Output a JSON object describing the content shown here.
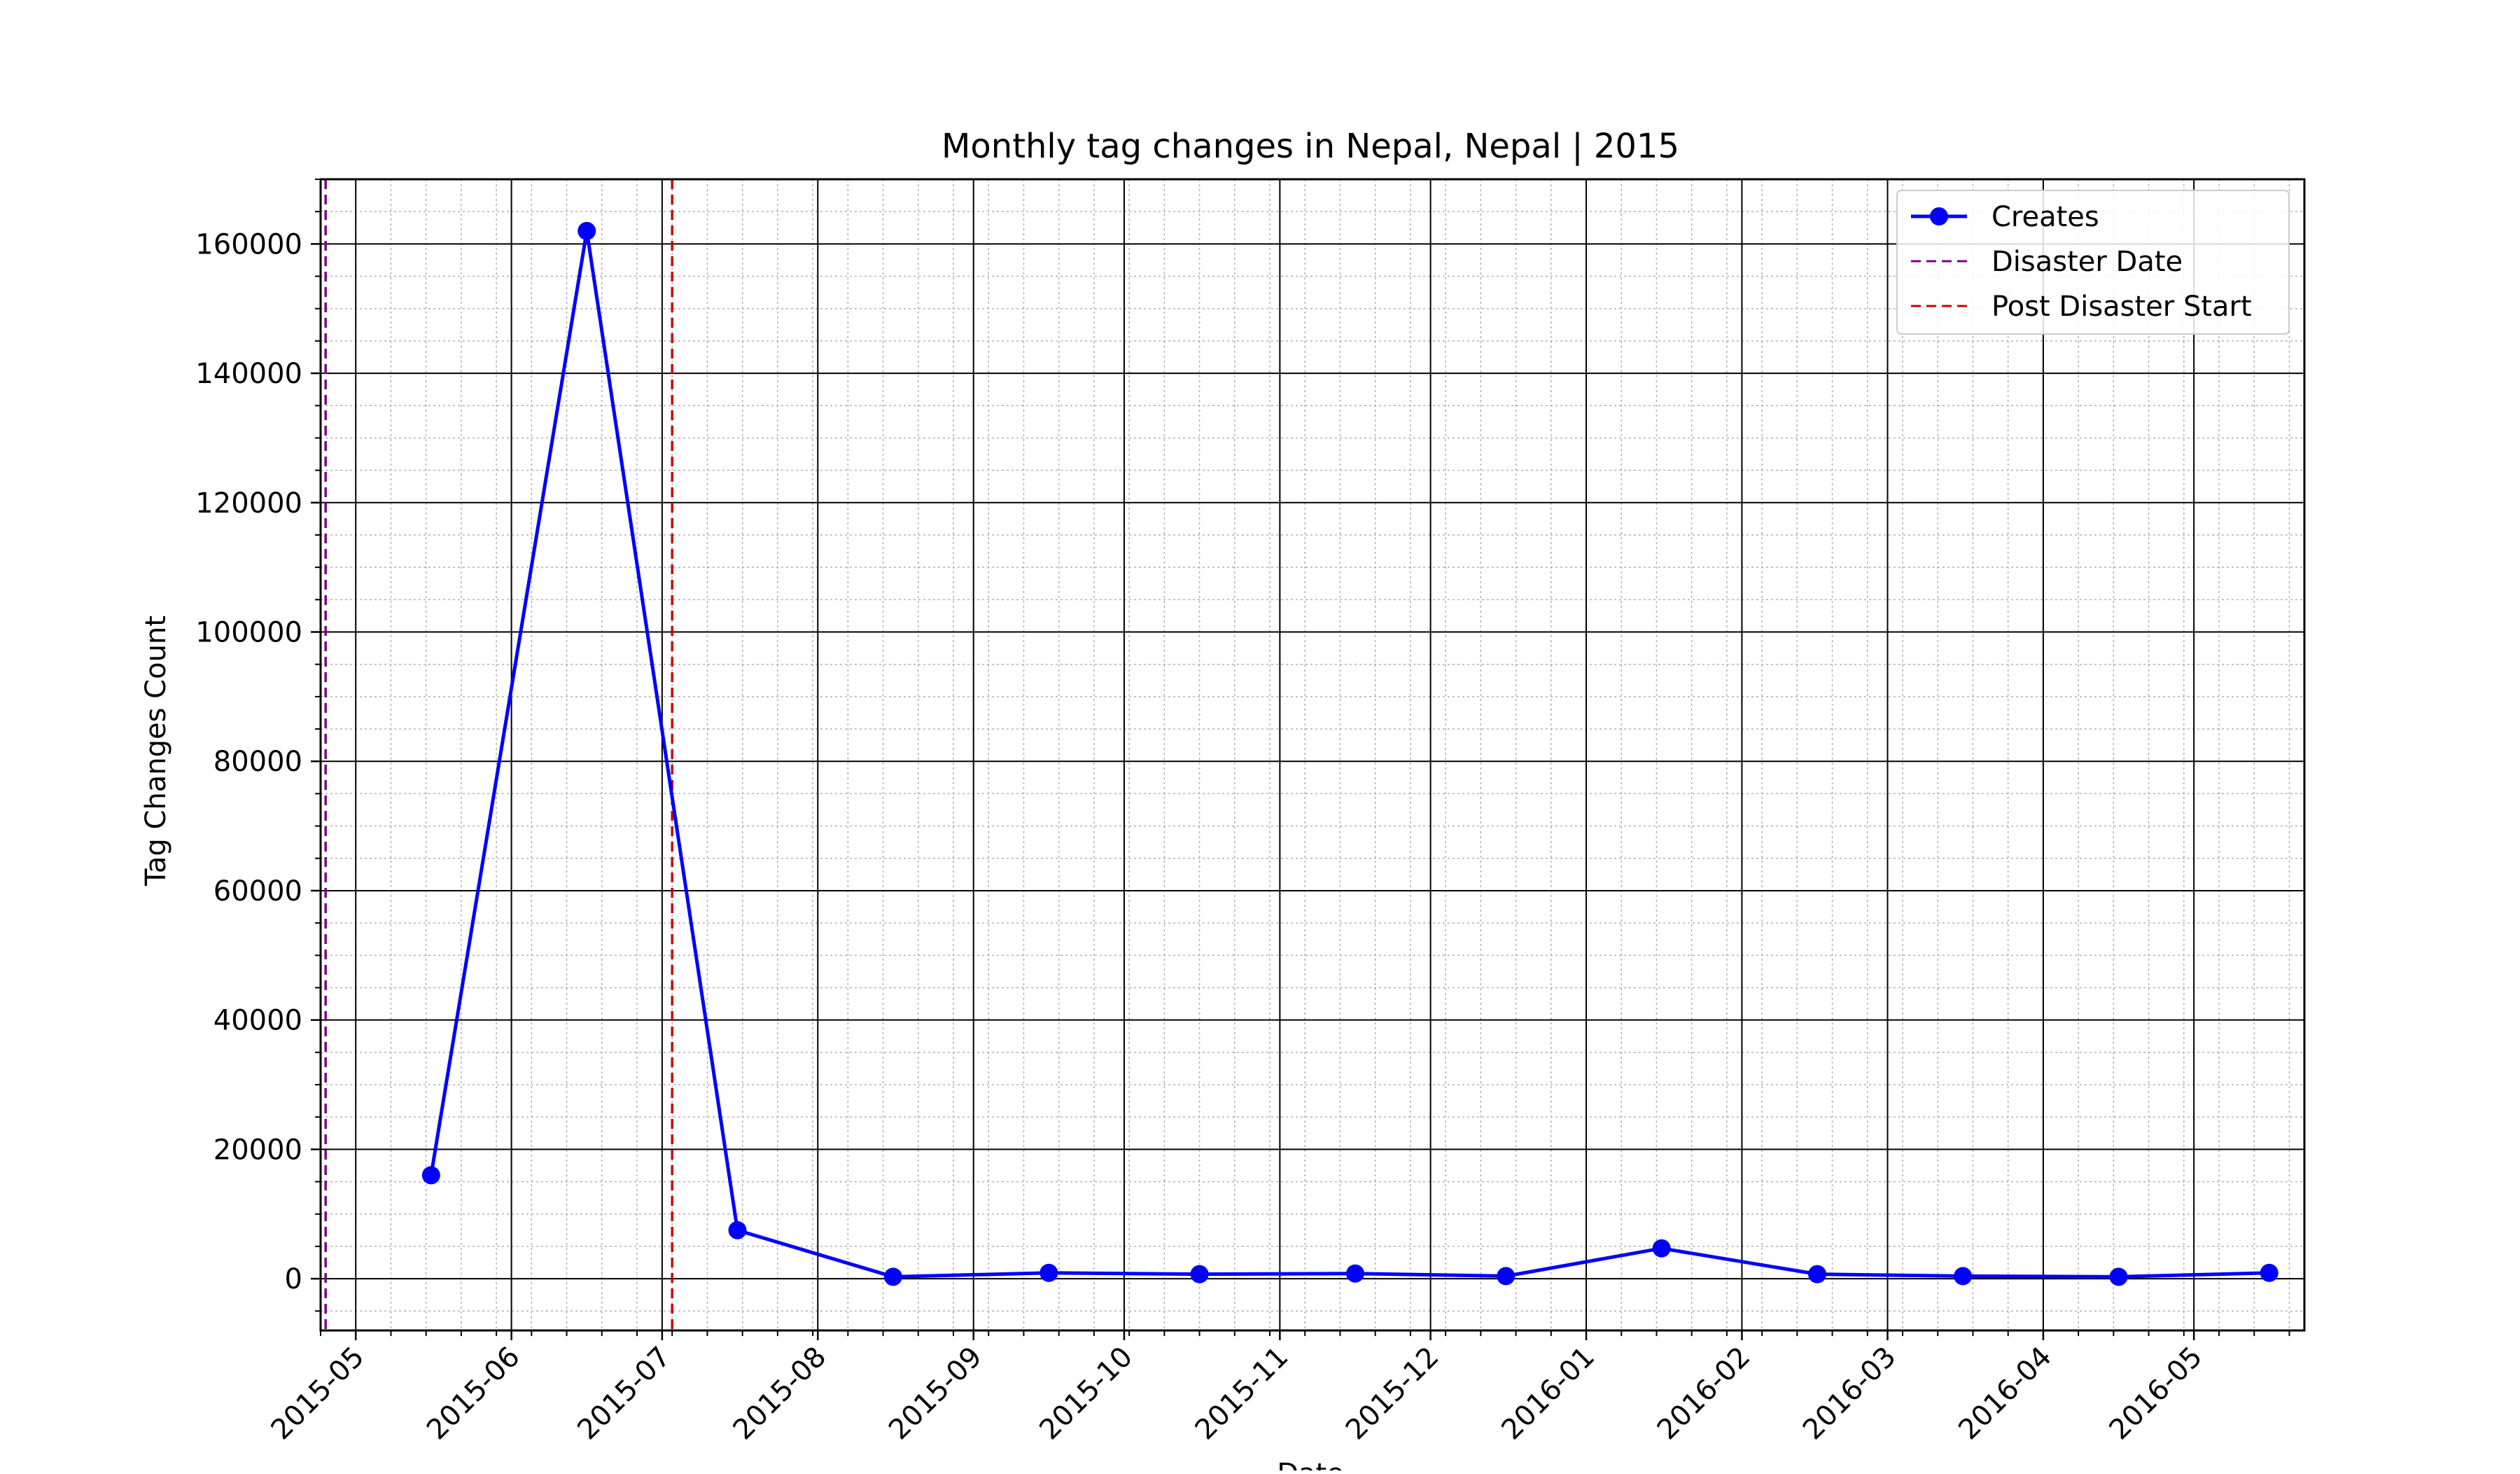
{
  "chart_data": {
    "type": "line",
    "title": "Monthly tag changes in Nepal, Nepal | 2015",
    "xlabel": "Date",
    "ylabel": "Tag Changes Count",
    "x_range": [
      "2015-04-24",
      "2016-05-23"
    ],
    "ylim": [
      -8000,
      170000
    ],
    "y_ticks": [
      0,
      20000,
      40000,
      60000,
      80000,
      100000,
      120000,
      140000,
      160000
    ],
    "y_tick_labels": [
      "0",
      "20000",
      "40000",
      "60000",
      "80000",
      "100000",
      "120000",
      "140000",
      "160000"
    ],
    "y_minor_step": 5000,
    "x_ticks": [
      "2015-05-01",
      "2015-06-01",
      "2015-07-01",
      "2015-08-01",
      "2015-09-01",
      "2015-10-01",
      "2015-11-01",
      "2015-12-01",
      "2016-01-01",
      "2016-02-01",
      "2016-03-01",
      "2016-04-01",
      "2016-05-01"
    ],
    "x_tick_labels": [
      "2015-05",
      "2015-06",
      "2015-07",
      "2015-08",
      "2015-09",
      "2015-10",
      "2015-11",
      "2015-12",
      "2016-01",
      "2016-02",
      "2016-03",
      "2016-04",
      "2016-05"
    ],
    "grid": true,
    "legend_position": "top-right",
    "series": [
      {
        "name": "Creates",
        "color": "#0000ff",
        "marker": "circle",
        "x": [
          "2015-05-16",
          "2015-06-16",
          "2015-07-16",
          "2015-08-16",
          "2015-09-16",
          "2015-10-16",
          "2015-11-16",
          "2015-12-16",
          "2016-01-16",
          "2016-02-16",
          "2016-03-16",
          "2016-04-16",
          "2016-05-16"
        ],
        "values": [
          16000,
          162000,
          7500,
          300,
          900,
          700,
          800,
          400,
          4700,
          700,
          400,
          300,
          900
        ]
      }
    ],
    "vlines": [
      {
        "name": "Disaster Date",
        "date": "2015-04-25",
        "color": "#800080",
        "style": "dashed"
      },
      {
        "name": "Post Disaster Start",
        "date": "2015-07-03",
        "color": "#cc0000",
        "style": "dashed"
      }
    ]
  }
}
